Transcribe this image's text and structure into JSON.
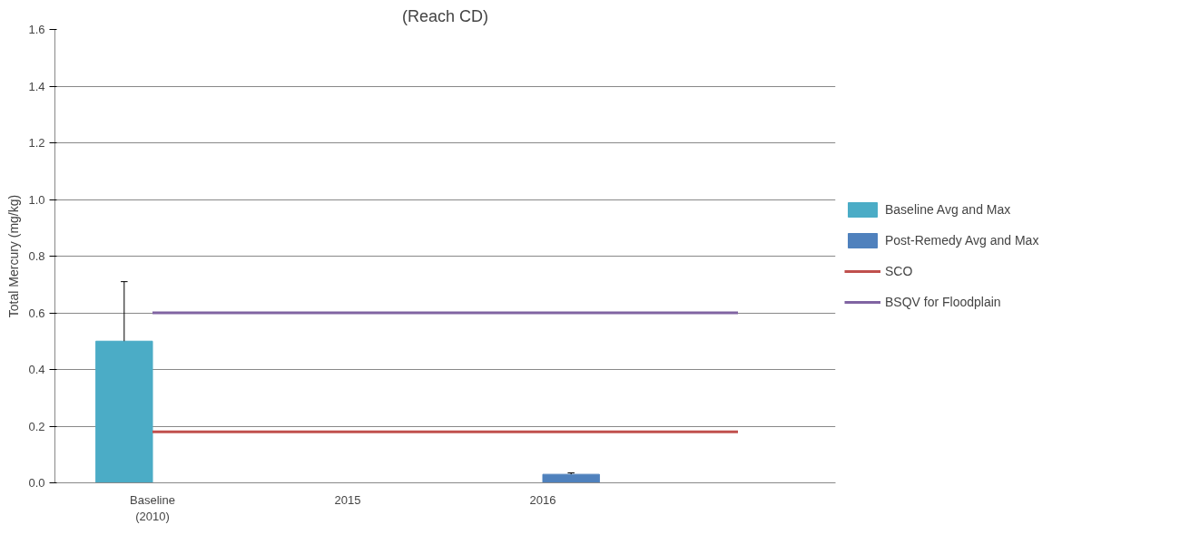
{
  "chart_data": {
    "type": "bar",
    "title": "(Reach CD)",
    "ylabel": "Total Mercury (mg/kg)",
    "categories": [
      "Baseline\n(2010)",
      "2015",
      "2016",
      null
    ],
    "series": [
      {
        "name": "Baseline Avg and Max",
        "color": "#4bacc6",
        "values": [
          0.5,
          null,
          null,
          null
        ],
        "errors": [
          [
            0.5,
            0.71
          ],
          null,
          null,
          null
        ]
      },
      {
        "name": "Post-Remedy Avg and Max",
        "color": "#4f81bd",
        "values": [
          null,
          null,
          0.03,
          null
        ],
        "errors": [
          null,
          null,
          [
            0.03,
            0.035
          ],
          null
        ]
      },
      {
        "name": "SCO",
        "type": "line",
        "color": "#c0504d",
        "values": [
          0.18,
          0.18,
          0.18,
          0.18
        ]
      },
      {
        "name": "BSQV for Floodplain",
        "type": "line",
        "color": "#8064a2",
        "values": [
          0.6,
          0.6,
          0.6,
          0.6
        ]
      }
    ],
    "ylim": [
      0,
      1.6
    ],
    "yticks": [
      {
        "value": 0,
        "label": "0.0"
      },
      0.2,
      0.4,
      0.6,
      0.8,
      {
        "value": 1,
        "label": "1.0"
      },
      1.2,
      1.4,
      1.6
    ],
    "grid": "y",
    "legend": "right",
    "marker": "none",
    "line_style": "solid"
  }
}
